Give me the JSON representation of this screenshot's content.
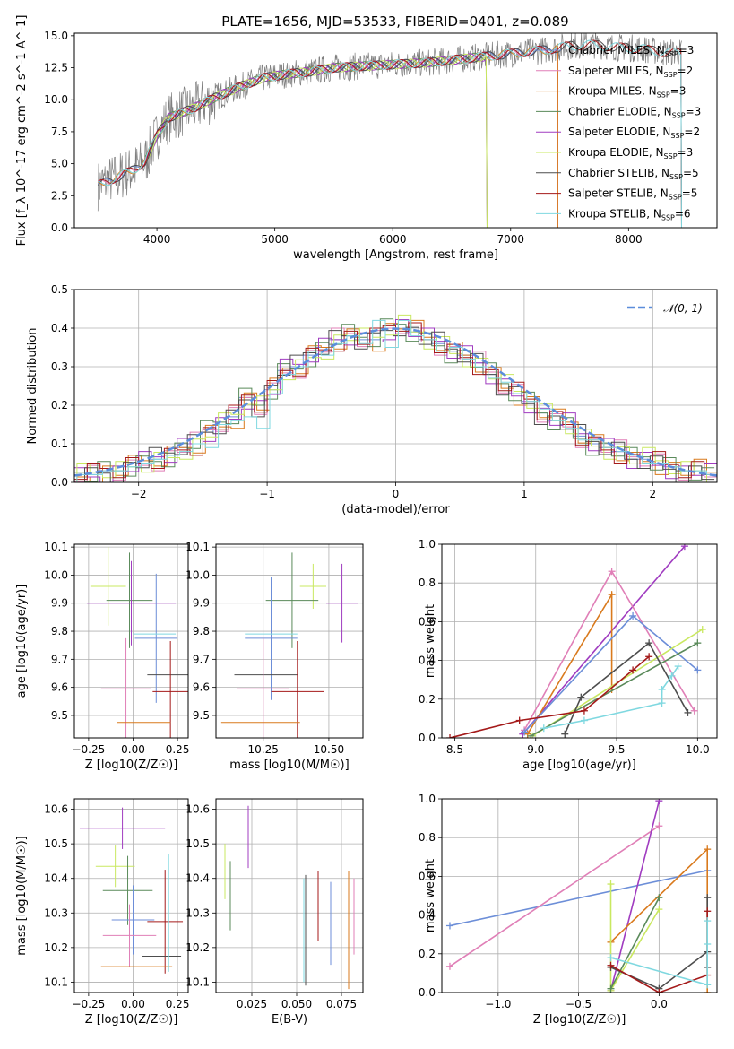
{
  "title": "PLATE=1656, MJD=53533, FIBERID=0401, z=0.089",
  "colors": {
    "chabrier_miles": "#6c8ed8",
    "salpeter_miles": "#e07fb7",
    "kroupa_miles": "#d97a1d",
    "chabrier_elodie": "#5a8a5a",
    "salpeter_elodie": "#a03cc0",
    "kroupa_elodie": "#c9e860",
    "chabrier_stelib": "#4d4d4d",
    "salpeter_stelib": "#a41a1a",
    "kroupa_stelib": "#7fd8e0",
    "data": "#7f7f7f",
    "normal_curve": "#5b8ddb"
  },
  "legend": [
    {
      "key": "chabrier_miles",
      "text": "Chabrier MILES, N",
      "sub": "SSP",
      "tail": "=3"
    },
    {
      "key": "salpeter_miles",
      "text": "Salpeter MILES, N",
      "sub": "SSP",
      "tail": "=2"
    },
    {
      "key": "kroupa_miles",
      "text": "Kroupa MILES, N",
      "sub": "SSP",
      "tail": "=3"
    },
    {
      "key": "chabrier_elodie",
      "text": "Chabrier ELODIE, N",
      "sub": "SSP",
      "tail": "=3"
    },
    {
      "key": "salpeter_elodie",
      "text": "Salpeter ELODIE, N",
      "sub": "SSP",
      "tail": "=2"
    },
    {
      "key": "kroupa_elodie",
      "text": "Kroupa ELODIE, N",
      "sub": "SSP",
      "tail": "=3"
    },
    {
      "key": "chabrier_stelib",
      "text": "Chabrier STELIB, N",
      "sub": "SSP",
      "tail": "=5"
    },
    {
      "key": "salpeter_stelib",
      "text": "Salpeter STELIB, N",
      "sub": "SSP",
      "tail": "=5"
    },
    {
      "key": "kroupa_stelib",
      "text": "Kroupa STELIB, N",
      "sub": "SSP",
      "tail": "=6"
    }
  ],
  "chart_data": [
    {
      "id": "spectrum",
      "type": "line",
      "xlabel": "wavelength [Angstrom, rest frame]",
      "ylabel": "Flux [f_λ 10^-17 erg cm^-2 s^-1 A^-1]",
      "xlim": [
        3300,
        8750
      ],
      "ylim": [
        0,
        15.2
      ],
      "xticks": [
        4000,
        5000,
        6000,
        7000,
        8000
      ],
      "yticks": [
        0.0,
        2.5,
        5.0,
        7.5,
        10.0,
        12.5,
        15.0
      ],
      "continuum": [
        [
          3500,
          3.3
        ],
        [
          3650,
          3.9
        ],
        [
          3800,
          4.5
        ],
        [
          3900,
          5.2
        ],
        [
          4000,
          7.2
        ],
        [
          4100,
          8.6
        ],
        [
          4300,
          9.3
        ],
        [
          4500,
          10.2
        ],
        [
          4700,
          11.0
        ],
        [
          4900,
          11.7
        ],
        [
          5100,
          12.0
        ],
        [
          5300,
          12.2
        ],
        [
          5500,
          12.5
        ],
        [
          5700,
          12.6
        ],
        [
          5900,
          12.7
        ],
        [
          6100,
          12.8
        ],
        [
          6300,
          12.9
        ],
        [
          6500,
          13.1
        ],
        [
          6700,
          13.3
        ],
        [
          6900,
          13.5
        ],
        [
          7100,
          13.7
        ],
        [
          7300,
          13.9
        ],
        [
          7500,
          14.2
        ],
        [
          7700,
          14.3
        ],
        [
          7900,
          14.1
        ],
        [
          8100,
          14.0
        ],
        [
          8300,
          13.7
        ]
      ],
      "series_names": [
        "chabrier_miles",
        "salpeter_miles",
        "kroupa_miles",
        "chabrier_elodie",
        "salpeter_elodie",
        "kroupa_elodie",
        "chabrier_stelib",
        "salpeter_stelib",
        "kroupa_stelib"
      ],
      "model_ranges": [
        [
          3500,
          7400
        ],
        [
          3500,
          7400
        ],
        [
          3500,
          7400
        ],
        [
          3900,
          6800
        ],
        [
          3900,
          6800
        ],
        [
          3900,
          6800
        ],
        [
          3500,
          8450
        ],
        [
          3500,
          8450
        ],
        [
          3500,
          8450
        ]
      ]
    },
    {
      "id": "residuals",
      "type": "histogram",
      "xlabel": "(data-model)/error",
      "ylabel": "Normed distribution",
      "xlim": [
        -2.5,
        2.5
      ],
      "ylim": [
        0,
        0.5
      ],
      "xticks": [
        -2,
        -1,
        0,
        1,
        2
      ],
      "yticks": [
        0.0,
        0.1,
        0.2,
        0.3,
        0.4,
        0.5
      ],
      "bin_width": 0.1,
      "reference_label": "N(0,1)",
      "bin_values_per_series": {
        "chabrier_miles": [
          0.02,
          0.02,
          0.03,
          0.03,
          0.04,
          0.05,
          0.06,
          0.07,
          0.09,
          0.1,
          0.13,
          0.15,
          0.17,
          0.22,
          0.2,
          0.24,
          0.29,
          0.3,
          0.33,
          0.35,
          0.37,
          0.38,
          0.37,
          0.37,
          0.4,
          0.41,
          0.39,
          0.37,
          0.36,
          0.34,
          0.33,
          0.31,
          0.28,
          0.25,
          0.23,
          0.21,
          0.18,
          0.16,
          0.15,
          0.12,
          0.1,
          0.09,
          0.08,
          0.06,
          0.06,
          0.05,
          0.04,
          0.03,
          0.03,
          0.02
        ],
        "kroupa_stelib": [
          0.02,
          0.02,
          0.03,
          0.03,
          0.04,
          0.05,
          0.06,
          0.07,
          0.08,
          0.1,
          0.09,
          0.15,
          0.16,
          0.17,
          0.14,
          0.23,
          0.28,
          0.3,
          0.34,
          0.33,
          0.36,
          0.38,
          0.36,
          0.42,
          0.35,
          0.42,
          0.38,
          0.37,
          0.34,
          0.35,
          0.32,
          0.3,
          0.27,
          0.26,
          0.23,
          0.21,
          0.19,
          0.16,
          0.14,
          0.11,
          0.11,
          0.09,
          0.08,
          0.07,
          0.05,
          0.05,
          0.04,
          0.03,
          0.03,
          0.02
        ]
      }
    },
    {
      "id": "age_vs_Z",
      "type": "errorbar",
      "xlabel": "Z [log10(Z/Z☉)]",
      "ylabel": "age  [log10(age/yr)]",
      "xlim": [
        -0.33,
        0.31
      ],
      "ylim": [
        9.42,
        10.11
      ],
      "xticks": [
        -0.25,
        0.0,
        0.25
      ],
      "yticks": [
        9.5,
        9.6,
        9.7,
        9.8,
        9.9,
        10.0,
        10.1
      ],
      "points": [
        {
          "s": "kroupa_elodie",
          "x": -0.14,
          "y": 9.96,
          "xerr": 0.1,
          "yerr": 0.14
        },
        {
          "s": "chabrier_elodie",
          "x": -0.02,
          "y": 9.91,
          "xerr": 0.13,
          "yerr": 0.17
        },
        {
          "s": "salpeter_elodie",
          "x": -0.01,
          "y": 9.9,
          "xerr": 0.25,
          "yerr": 0.15
        },
        {
          "s": "chabrier_miles",
          "x": 0.13,
          "y": 9.775,
          "xerr": 0.12,
          "yerr": 0.23
        },
        {
          "s": "kroupa_stelib",
          "x": 0.12,
          "y": 9.79,
          "xerr": 0.12,
          "yerr": 0.0
        },
        {
          "s": "chabrier_stelib",
          "x": 0.2,
          "y": 9.645,
          "xerr": 0.12,
          "yerr": 0.0
        },
        {
          "s": "salpeter_miles",
          "x": -0.04,
          "y": 9.595,
          "xerr": 0.14,
          "yerr": 0.18
        },
        {
          "s": "salpeter_stelib",
          "x": 0.21,
          "y": 9.585,
          "xerr": 0.1,
          "yerr": 0.18
        },
        {
          "s": "kroupa_miles",
          "x": 0.06,
          "y": 9.475,
          "xerr": 0.15,
          "yerr": 0.0
        }
      ]
    },
    {
      "id": "age_vs_mass",
      "type": "errorbar",
      "xlabel": "mass [log10(M/M☉)]",
      "ylabel": "",
      "xlim": [
        10.07,
        10.63
      ],
      "ylim": [
        9.42,
        10.11
      ],
      "xticks": [
        10.25,
        10.5
      ],
      "yticks": [
        9.5,
        9.6,
        9.7,
        9.8,
        9.9,
        10.0,
        10.1
      ],
      "points": [
        {
          "s": "kroupa_elodie",
          "x": 10.44,
          "y": 9.96,
          "xerr": 0.05,
          "yerr": 0.08
        },
        {
          "s": "chabrier_elodie",
          "x": 10.36,
          "y": 9.91,
          "xerr": 0.1,
          "yerr": 0.17
        },
        {
          "s": "salpeter_elodie",
          "x": 10.55,
          "y": 9.9,
          "xerr": 0.06,
          "yerr": 0.14
        },
        {
          "s": "chabrier_miles",
          "x": 10.28,
          "y": 9.775,
          "xerr": 0.1,
          "yerr": 0.22
        },
        {
          "s": "kroupa_stelib",
          "x": 10.28,
          "y": 9.79,
          "xerr": 0.1,
          "yerr": 0.0
        },
        {
          "s": "chabrier_stelib",
          "x": 10.26,
          "y": 9.645,
          "xerr": 0.12,
          "yerr": 0.0
        },
        {
          "s": "salpeter_miles",
          "x": 10.25,
          "y": 9.595,
          "xerr": 0.1,
          "yerr": 0.18
        },
        {
          "s": "salpeter_stelib",
          "x": 10.38,
          "y": 9.585,
          "xerr": 0.1,
          "yerr": 0.18
        },
        {
          "s": "kroupa_miles",
          "x": 10.24,
          "y": 9.475,
          "xerr": 0.15,
          "yerr": 0.0
        }
      ]
    },
    {
      "id": "weights_vs_age",
      "type": "line",
      "xlabel": "age  [log10(age/yr)]",
      "ylabel": "mass weight",
      "xlim": [
        8.42,
        10.12
      ],
      "ylim": [
        0,
        1
      ],
      "xticks": [
        8.5,
        9.0,
        9.5,
        10.0
      ],
      "yticks": [
        0.0,
        0.2,
        0.4,
        0.6,
        0.8,
        1.0
      ],
      "series": [
        {
          "s": "salpeter_elodie",
          "points": [
            [
              8.92,
              0.02
            ],
            [
              9.92,
              0.99
            ]
          ]
        },
        {
          "s": "salpeter_miles",
          "points": [
            [
              8.93,
              0.04
            ],
            [
              9.47,
              0.86
            ],
            [
              9.98,
              0.14
            ]
          ]
        },
        {
          "s": "kroupa_miles",
          "points": [
            [
              8.95,
              0.02
            ],
            [
              9.47,
              0.74
            ],
            [
              9.47,
              0.25
            ]
          ]
        },
        {
          "s": "chabrier_miles",
          "points": [
            [
              8.93,
              0.03
            ],
            [
              9.6,
              0.63
            ],
            [
              10.0,
              0.35
            ]
          ]
        },
        {
          "s": "kroupa_elodie",
          "points": [
            [
              8.98,
              0.01
            ],
            [
              10.03,
              0.56
            ]
          ]
        },
        {
          "s": "chabrier_elodie",
          "points": [
            [
              8.97,
              0.01
            ],
            [
              10.0,
              0.49
            ]
          ]
        },
        {
          "s": "chabrier_stelib",
          "points": [
            [
              9.18,
              0.02
            ],
            [
              9.28,
              0.21
            ],
            [
              9.7,
              0.49
            ],
            [
              9.94,
              0.13
            ]
          ]
        },
        {
          "s": "salpeter_stelib",
          "points": [
            [
              8.47,
              0.0
            ],
            [
              8.9,
              0.09
            ],
            [
              9.3,
              0.14
            ],
            [
              9.6,
              0.35
            ],
            [
              9.7,
              0.42
            ]
          ]
        },
        {
          "s": "kroupa_stelib",
          "points": [
            [
              9.05,
              0.05
            ],
            [
              9.3,
              0.09
            ],
            [
              9.78,
              0.18
            ],
            [
              9.78,
              0.25
            ],
            [
              9.84,
              0.32
            ],
            [
              9.88,
              0.37
            ]
          ]
        }
      ]
    },
    {
      "id": "mass_vs_Z",
      "type": "errorbar",
      "xlabel": "Z [log10(Z/Z☉)]",
      "ylabel": "mass [log10(M/M☉)]",
      "xlim": [
        -0.33,
        0.31
      ],
      "ylim": [
        10.07,
        10.63
      ],
      "xticks": [
        -0.25,
        0.0,
        0.25
      ],
      "yticks": [
        10.1,
        10.2,
        10.3,
        10.4,
        10.5,
        10.6
      ],
      "points": [
        {
          "s": "salpeter_elodie",
          "x": -0.06,
          "y": 10.545,
          "xerr": 0.24,
          "yerr": 0.06
        },
        {
          "s": "kroupa_elodie",
          "x": -0.1,
          "y": 10.435,
          "xerr": 0.11,
          "yerr": 0.06
        },
        {
          "s": "chabrier_elodie",
          "x": -0.03,
          "y": 10.365,
          "xerr": 0.14,
          "yerr": 0.1
        },
        {
          "s": "chabrier_miles",
          "x": 0.0,
          "y": 10.28,
          "xerr": 0.12,
          "yerr": 0.1
        },
        {
          "s": "salpeter_stelib",
          "x": 0.18,
          "y": 10.275,
          "xerr": 0.1,
          "yerr": 0.15
        },
        {
          "s": "salpeter_miles",
          "x": -0.02,
          "y": 10.235,
          "xerr": 0.15,
          "yerr": 0.09
        },
        {
          "s": "chabrier_stelib",
          "x": 0.16,
          "y": 10.175,
          "xerr": 0.11,
          "yerr": 0.0
        },
        {
          "s": "kroupa_miles",
          "x": 0.02,
          "y": 10.145,
          "xerr": 0.2,
          "yerr": 0.0
        },
        {
          "s": "kroupa_stelib",
          "x": 0.2,
          "y": 10.3,
          "xerr": 0.0,
          "yerr": 0.17
        }
      ]
    },
    {
      "id": "mass_vs_ebv",
      "type": "errorbar",
      "xlabel": "E(B-V)",
      "ylabel": "",
      "xlim": [
        0.005,
        0.087
      ],
      "ylim": [
        10.07,
        10.63
      ],
      "xticks": [
        0.025,
        0.05,
        0.075
      ],
      "yticks": [
        10.1,
        10.2,
        10.3,
        10.4,
        10.5,
        10.6
      ],
      "points": [
        {
          "s": "kroupa_elodie",
          "x": 0.01,
          "y": 10.42,
          "xerr": 0.0,
          "yerr": 0.08
        },
        {
          "s": "chabrier_elodie",
          "x": 0.013,
          "y": 10.35,
          "xerr": 0.0,
          "yerr": 0.1
        },
        {
          "s": "salpeter_elodie",
          "x": 0.023,
          "y": 10.52,
          "xerr": 0.0,
          "yerr": 0.09
        },
        {
          "s": "chabrier_stelib",
          "x": 0.055,
          "y": 10.25,
          "xerr": 0.0,
          "yerr": 0.16
        },
        {
          "s": "kroupa_stelib",
          "x": 0.054,
          "y": 10.25,
          "xerr": 0.0,
          "yerr": 0.15
        },
        {
          "s": "salpeter_stelib",
          "x": 0.062,
          "y": 10.32,
          "xerr": 0.0,
          "yerr": 0.1
        },
        {
          "s": "chabrier_miles",
          "x": 0.069,
          "y": 10.27,
          "xerr": 0.0,
          "yerr": 0.12
        },
        {
          "s": "kroupa_miles",
          "x": 0.079,
          "y": 10.25,
          "xerr": 0.0,
          "yerr": 0.17
        },
        {
          "s": "salpeter_miles",
          "x": 0.082,
          "y": 10.29,
          "xerr": 0.0,
          "yerr": 0.11
        }
      ]
    },
    {
      "id": "weights_vs_Z",
      "type": "line",
      "xlabel": "Z [log10(Z/Z☉)]",
      "ylabel": "mass weight",
      "xlim": [
        -1.35,
        0.36
      ],
      "ylim": [
        0,
        1
      ],
      "xticks": [
        -1.0,
        -0.5,
        0.0
      ],
      "yticks": [
        0.0,
        0.2,
        0.4,
        0.6,
        0.8,
        1.0
      ],
      "series": [
        {
          "s": "chabrier_miles",
          "points": [
            [
              -1.3,
              0.345
            ],
            [
              0.3,
              0.63
            ]
          ]
        },
        {
          "s": "salpeter_miles",
          "points": [
            [
              -1.3,
              0.135
            ],
            [
              0.0,
              0.86
            ]
          ]
        },
        {
          "s": "salpeter_elodie",
          "points": [
            [
              -0.3,
              0.01
            ],
            [
              0.0,
              0.99
            ]
          ]
        },
        {
          "s": "kroupa_miles",
          "points": [
            [
              -0.3,
              0.26
            ],
            [
              0.3,
              0.74
            ],
            [
              0.3,
              0.0
            ]
          ]
        },
        {
          "s": "kroupa_elodie",
          "points": [
            [
              -0.3,
              0.56
            ],
            [
              -0.3,
              0.01
            ],
            [
              0.0,
              0.43
            ]
          ]
        },
        {
          "s": "chabrier_elodie",
          "points": [
            [
              -0.3,
              0.02
            ],
            [
              0.0,
              0.49
            ]
          ]
        },
        {
          "s": "chabrier_stelib",
          "points": [
            [
              -0.3,
              0.13
            ],
            [
              0.0,
              0.02
            ],
            [
              0.3,
              0.21
            ],
            [
              0.3,
              0.49
            ],
            [
              0.3,
              0.13
            ]
          ]
        },
        {
          "s": "salpeter_stelib",
          "points": [
            [
              -0.3,
              0.14
            ],
            [
              0.0,
              0.0
            ],
            [
              0.3,
              0.09
            ],
            [
              0.3,
              0.42
            ]
          ]
        },
        {
          "s": "kroupa_stelib",
          "points": [
            [
              -0.3,
              0.18
            ],
            [
              0.3,
              0.04
            ],
            [
              0.3,
              0.37
            ],
            [
              0.3,
              0.25
            ]
          ]
        }
      ]
    }
  ]
}
